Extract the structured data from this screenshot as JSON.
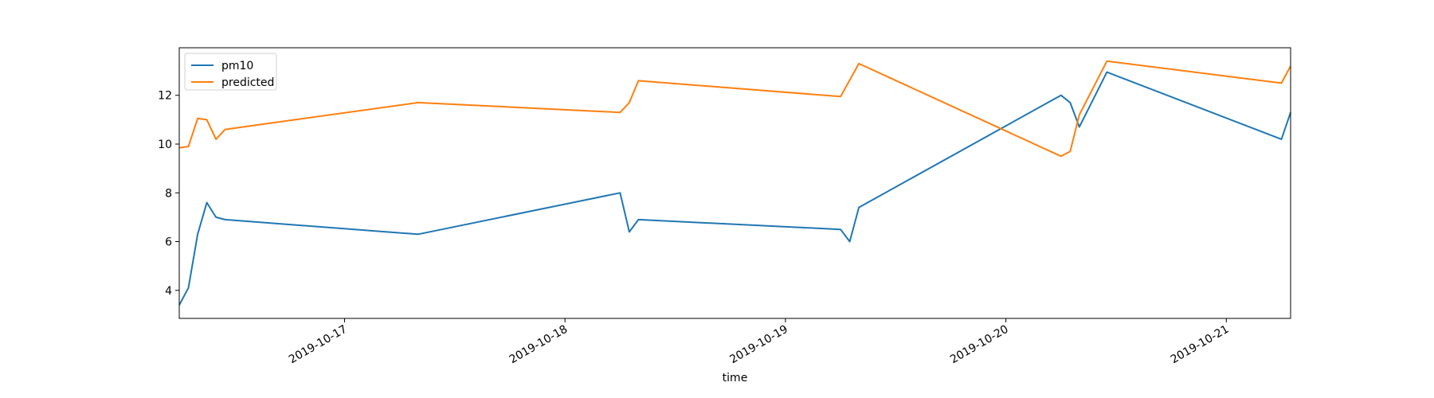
{
  "chart_data": {
    "type": "line",
    "title": "",
    "xlabel": "time",
    "ylabel": "",
    "x_axis_type": "datetime",
    "xlim": [
      "2019-10-16T06:00",
      "2019-10-21T07:00"
    ],
    "ylim": [
      2.85,
      13.95
    ],
    "x_ticks": [
      "2019-10-17",
      "2019-10-18",
      "2019-10-19",
      "2019-10-20",
      "2019-10-21"
    ],
    "y_ticks": [
      4,
      6,
      8,
      10,
      12
    ],
    "grid": false,
    "legend_position": "upper-left",
    "series": [
      {
        "name": "pm10",
        "color": "#1f77b4",
        "points": [
          [
            "2019-10-16T06:00",
            3.4
          ],
          [
            "2019-10-16T07:00",
            4.1
          ],
          [
            "2019-10-16T08:00",
            6.3
          ],
          [
            "2019-10-16T09:00",
            7.6
          ],
          [
            "2019-10-16T10:00",
            7.0
          ],
          [
            "2019-10-16T11:00",
            6.9
          ],
          [
            "2019-10-17T08:00",
            6.3
          ],
          [
            "2019-10-18T06:00",
            8.0
          ],
          [
            "2019-10-18T07:00",
            6.4
          ],
          [
            "2019-10-18T08:00",
            6.9
          ],
          [
            "2019-10-19T06:00",
            6.5
          ],
          [
            "2019-10-19T07:00",
            6.0
          ],
          [
            "2019-10-19T08:00",
            7.4
          ],
          [
            "2019-10-20T06:00",
            12.0
          ],
          [
            "2019-10-20T07:00",
            11.7
          ],
          [
            "2019-10-20T08:00",
            10.7
          ],
          [
            "2019-10-20T11:00",
            12.95
          ],
          [
            "2019-10-21T06:00",
            10.2
          ],
          [
            "2019-10-21T07:00",
            11.3
          ]
        ]
      },
      {
        "name": "predicted",
        "color": "#ff7f0e",
        "points": [
          [
            "2019-10-16T06:00",
            9.85
          ],
          [
            "2019-10-16T07:00",
            9.9
          ],
          [
            "2019-10-16T08:00",
            11.05
          ],
          [
            "2019-10-16T09:00",
            11.0
          ],
          [
            "2019-10-16T10:00",
            10.2
          ],
          [
            "2019-10-16T11:00",
            10.6
          ],
          [
            "2019-10-17T08:00",
            11.7
          ],
          [
            "2019-10-18T06:00",
            11.3
          ],
          [
            "2019-10-18T07:00",
            11.7
          ],
          [
            "2019-10-18T08:00",
            12.6
          ],
          [
            "2019-10-19T06:00",
            11.95
          ],
          [
            "2019-10-19T08:00",
            13.3
          ],
          [
            "2019-10-20T06:00",
            9.5
          ],
          [
            "2019-10-20T07:00",
            9.7
          ],
          [
            "2019-10-20T08:00",
            11.2
          ],
          [
            "2019-10-20T11:00",
            13.4
          ],
          [
            "2019-10-21T06:00",
            12.5
          ],
          [
            "2019-10-21T07:00",
            13.2
          ]
        ]
      }
    ]
  }
}
